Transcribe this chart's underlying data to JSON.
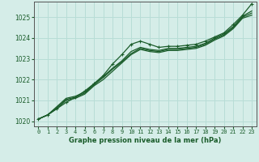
{
  "title": "Graphe pression niveau de la mer (hPa)",
  "background_color": "#d5ede8",
  "grid_color": "#b8ddd6",
  "line_color": "#1a5c2a",
  "x_values": [
    0,
    1,
    2,
    3,
    4,
    5,
    6,
    7,
    8,
    9,
    10,
    11,
    12,
    13,
    14,
    15,
    16,
    17,
    18,
    19,
    20,
    21,
    22,
    23
  ],
  "series1": [
    1020.1,
    1020.3,
    1020.6,
    1020.9,
    1021.15,
    1021.45,
    1021.8,
    1022.2,
    1022.75,
    1023.2,
    1023.7,
    1023.85,
    1023.7,
    1023.55,
    1023.6,
    1023.6,
    1023.65,
    1023.7,
    1023.85,
    1024.05,
    1024.25,
    1024.65,
    1025.1,
    1025.65
  ],
  "series2": [
    1020.1,
    1020.3,
    1020.7,
    1021.1,
    1021.2,
    1021.4,
    1021.8,
    1022.15,
    1022.55,
    1022.9,
    1023.35,
    1023.55,
    1023.45,
    1023.4,
    1023.5,
    1023.5,
    1023.55,
    1023.6,
    1023.75,
    1024.0,
    1024.2,
    1024.55,
    1025.05,
    1025.3
  ],
  "series3": [
    1020.1,
    1020.3,
    1020.65,
    1021.05,
    1021.15,
    1021.35,
    1021.75,
    1022.1,
    1022.5,
    1022.85,
    1023.25,
    1023.5,
    1023.4,
    1023.35,
    1023.45,
    1023.45,
    1023.5,
    1023.55,
    1023.7,
    1023.95,
    1024.15,
    1024.5,
    1025.0,
    1025.2
  ],
  "series4": [
    1020.1,
    1020.3,
    1020.6,
    1021.0,
    1021.1,
    1021.3,
    1021.7,
    1022.0,
    1022.4,
    1022.8,
    1023.2,
    1023.45,
    1023.35,
    1023.3,
    1023.4,
    1023.4,
    1023.45,
    1023.5,
    1023.65,
    1023.9,
    1024.1,
    1024.45,
    1024.95,
    1025.1
  ],
  "ylim": [
    1019.75,
    1025.75
  ],
  "yticks": [
    1020,
    1021,
    1022,
    1023,
    1024,
    1025
  ],
  "xlim": [
    -0.5,
    23.5
  ],
  "xticks": [
    0,
    1,
    2,
    3,
    4,
    5,
    6,
    7,
    8,
    9,
    10,
    11,
    12,
    13,
    14,
    15,
    16,
    17,
    18,
    19,
    20,
    21,
    22,
    23
  ],
  "xlabel_color": "#1a5c2a",
  "tick_color": "#1a5c2a",
  "spine_color": "#555555"
}
